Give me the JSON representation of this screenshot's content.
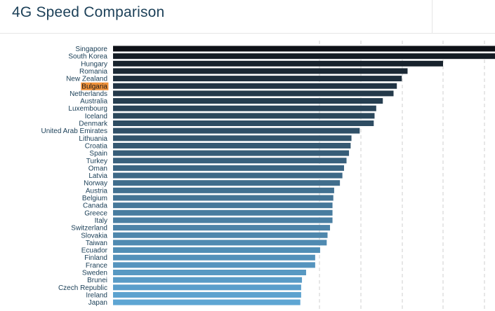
{
  "title": "4G Speed Comparison",
  "highlight_category": "Bulgaria",
  "colors": {
    "highlight": "#f0923a",
    "bar_dark": "#0e1117",
    "bar_light": "#5ea5d3",
    "label": "#1d4159",
    "grid": "#cfcfcf"
  },
  "chart_data": {
    "type": "bar",
    "orientation": "horizontal",
    "title": "4G Speed Comparison",
    "xlabel": "",
    "ylabel": "",
    "xlim": [
      0,
      46
    ],
    "grid": true,
    "categories": [
      "Singapore",
      "South Korea",
      "Hungary",
      "Romania",
      "New Zealand",
      "Bulgaria",
      "Netherlands",
      "Australia",
      "Luxembourg",
      "Iceland",
      "Denmark",
      "United Arab Emirates",
      "Lithuania",
      "Croatia",
      "Spain",
      "Turkey",
      "Oman",
      "Latvia",
      "Norway",
      "Austria",
      "Belgium",
      "Canada",
      "Greece",
      "Italy",
      "Switzerland",
      "Slovakia",
      "Taiwan",
      "Ecuador",
      "Finland",
      "France",
      "Sweden",
      "Brunei",
      "Czech Republic",
      "Ireland",
      "Japan"
    ],
    "values": [
      46.6,
      46.6,
      40.0,
      35.7,
      35.0,
      34.4,
      34.0,
      32.7,
      31.9,
      31.7,
      31.6,
      29.9,
      28.9,
      28.8,
      28.6,
      28.3,
      28.0,
      27.8,
      27.5,
      26.8,
      26.7,
      26.6,
      26.6,
      26.6,
      26.3,
      26.0,
      25.9,
      25.1,
      24.5,
      24.5,
      23.4,
      22.9,
      22.8,
      22.8,
      22.7
    ]
  }
}
